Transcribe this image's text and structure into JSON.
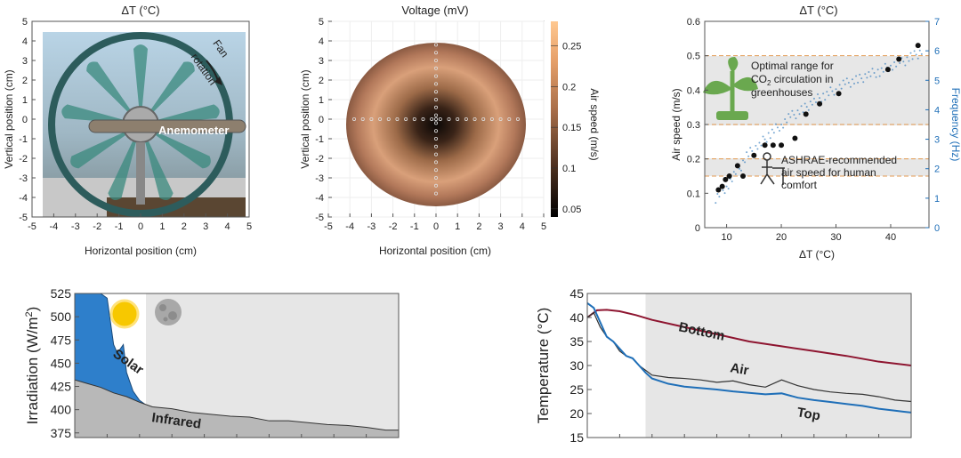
{
  "chart_data": [
    {
      "type": "photo-plot",
      "title": "ΔT (°C)",
      "xlabel": "Horizontal position (cm)",
      "ylabel": "Vertical position (cm)",
      "xlim": [
        -5,
        5
      ],
      "ylim": [
        -5,
        5
      ],
      "xticks": [
        -5,
        -4,
        -3,
        -2,
        -1,
        0,
        1,
        2,
        3,
        4,
        5
      ],
      "yticks": [
        -5,
        -4,
        -3,
        -2,
        -1,
        0,
        1,
        2,
        3,
        4,
        5
      ],
      "annotations": {
        "fan": "Fan",
        "rotation": "rotation",
        "anemometer": "Anemometer"
      }
    },
    {
      "type": "heatmap",
      "title": "Voltage (mV)",
      "xlabel": "Horizontal position (cm)",
      "ylabel": "Vertical position (cm)",
      "colorbar_label": "Air speed (m/s)",
      "colorbar_ticks": [
        "0.05",
        "0.1",
        "0.15",
        "0.2",
        "0.25"
      ],
      "colorbar_range": [
        0.04,
        0.28
      ],
      "xlim": [
        -5,
        5
      ],
      "ylim": [
        -5,
        5
      ],
      "xticks": [
        -5,
        -4,
        -3,
        -2,
        -1,
        0,
        1,
        2,
        3,
        4,
        5
      ],
      "yticks": [
        -5,
        -4,
        -3,
        -2,
        -1,
        0,
        1,
        2,
        3,
        4,
        5
      ],
      "disk_radius_cm": 4.2,
      "sample_points": {
        "horizontal": [
          -3.8,
          -3.4,
          -3,
          -2.6,
          -2.2,
          -1.8,
          -1.4,
          -1,
          -0.6,
          -0.2,
          0,
          0.2,
          0.6,
          1,
          1.4,
          1.8,
          2.2,
          2.6,
          3,
          3.4,
          3.8
        ],
        "vertical": [
          -3.8,
          -3.4,
          -3,
          -2.6,
          -2.2,
          -1.8,
          -1.4,
          -1,
          -0.6,
          -0.2,
          0.2,
          0.6,
          1,
          1.4,
          1.8,
          2.2,
          2.6,
          3,
          3.4,
          3.8
        ]
      }
    },
    {
      "type": "scatter",
      "title": "ΔT (°C)",
      "xlabel": "ΔT (°C)",
      "ylabel": "Air speed (m/s)",
      "ylabel_right": "Frequency (Hz)",
      "xlim": [
        6,
        47
      ],
      "ylim": [
        0,
        0.6
      ],
      "ylim_right": [
        0,
        7
      ],
      "xticks": [
        10,
        20,
        30,
        40
      ],
      "yticks": [
        0,
        0.1,
        0.2,
        0.3,
        0.4,
        0.5,
        0.6
      ],
      "yticks_right": [
        0,
        1,
        2,
        3,
        4,
        5,
        6,
        7
      ],
      "bands": [
        {
          "name": "CO2 range",
          "y0": 0.3,
          "y1": 0.5,
          "label_lines": [
            "Optimal range for",
            "CO",
            "2",
            " circulation in",
            "greenhouses"
          ]
        },
        {
          "name": "ASHRAE range",
          "y0": 0.15,
          "y1": 0.2,
          "label_lines": [
            "ASHRAE-recommended",
            "air speed for human",
            "comfort"
          ]
        }
      ],
      "series": [
        {
          "name": "Air speed",
          "x": [
            8.5,
            9.2,
            9.8,
            10.5,
            12,
            13,
            15,
            17,
            18.5,
            20,
            22.5,
            24.5,
            27,
            30.5,
            39.5,
            41.5,
            45
          ],
          "y": [
            0.11,
            0.12,
            0.14,
            0.15,
            0.18,
            0.15,
            0.21,
            0.24,
            0.24,
            0.24,
            0.26,
            0.33,
            0.36,
            0.39,
            0.46,
            0.49,
            0.53
          ]
        },
        {
          "name": "Frequency",
          "x": [
            8,
            10,
            12,
            14,
            16,
            18,
            20,
            22,
            24,
            26,
            28,
            30,
            32,
            34,
            36,
            38,
            40,
            42,
            44,
            46
          ],
          "y": [
            1.0,
            1.4,
            1.9,
            2.5,
            2.8,
            3.2,
            3.5,
            3.8,
            4.0,
            4.3,
            4.5,
            4.7,
            4.9,
            5.0,
            5.2,
            5.3,
            5.5,
            5.6,
            5.8,
            6.0
          ]
        }
      ]
    },
    {
      "type": "area",
      "ylabel": "Irradiation (W/m",
      "ylabel_sup": "2",
      "ylabel_end": ")",
      "xlim": [
        0,
        100
      ],
      "ylim": [
        370,
        525
      ],
      "yticks": [
        "375",
        "400",
        "425",
        "450",
        "475",
        "500",
        "525"
      ],
      "day_night_split": 22,
      "series": [
        {
          "name": "Solar",
          "x": [
            0,
            4,
            8,
            10,
            12,
            13,
            14,
            15,
            16,
            18,
            20,
            22,
            24
          ],
          "y": [
            525,
            525,
            525,
            520,
            470,
            462,
            465,
            470,
            440,
            420,
            410,
            405,
            402
          ]
        },
        {
          "name": "Infrared",
          "x": [
            0,
            4,
            8,
            12,
            16,
            20,
            24,
            30,
            36,
            42,
            48,
            54,
            60,
            66,
            72,
            78,
            84,
            90,
            96,
            100
          ],
          "y": [
            432,
            428,
            424,
            418,
            414,
            408,
            403,
            401,
            397,
            395,
            393,
            392,
            388,
            388,
            386,
            384,
            383,
            381,
            378,
            378
          ]
        }
      ],
      "annotations": {
        "solar": "Solar",
        "infrared": "Infrared"
      }
    },
    {
      "type": "line",
      "ylabel": "Temperature (°C)",
      "xlim": [
        0,
        100
      ],
      "ylim": [
        15,
        45
      ],
      "yticks": [
        "15",
        "20",
        "25",
        "30",
        "35",
        "40",
        "45"
      ],
      "shade_start": 18,
      "series": [
        {
          "name": "Bottom",
          "x": [
            0,
            3,
            6,
            10,
            15,
            20,
            30,
            40,
            50,
            60,
            70,
            80,
            90,
            100
          ],
          "y": [
            40,
            41.5,
            41.6,
            41.3,
            40.5,
            39.5,
            38.0,
            36.5,
            35.0,
            34.0,
            33.0,
            32.0,
            30.8,
            30.0
          ]
        },
        {
          "name": "Air",
          "x": [
            0,
            2,
            4,
            6,
            8,
            10,
            12,
            14,
            16,
            18,
            20,
            25,
            30,
            35,
            40,
            45,
            50,
            55,
            60,
            65,
            70,
            75,
            80,
            85,
            90,
            95,
            100
          ],
          "y": [
            40,
            41,
            38,
            36,
            35,
            33,
            32,
            31.5,
            30,
            29,
            28,
            27.5,
            27.3,
            27,
            26.5,
            26.8,
            26,
            25.5,
            27,
            25.8,
            25,
            24.5,
            24.2,
            24,
            23.5,
            22.8,
            22.5
          ]
        },
        {
          "name": "Top",
          "x": [
            0,
            2,
            4,
            6,
            8,
            10,
            12,
            14,
            16,
            18,
            20,
            25,
            30,
            35,
            40,
            45,
            50,
            55,
            60,
            65,
            70,
            75,
            80,
            85,
            90,
            95,
            100
          ],
          "y": [
            43,
            42,
            39,
            36,
            35,
            33.5,
            32,
            31.5,
            30,
            28.5,
            27.3,
            26.2,
            25.6,
            25.3,
            25,
            24.6,
            24.3,
            24,
            24.2,
            23.3,
            22.8,
            22.4,
            22,
            21.6,
            21,
            20.6,
            20.2
          ]
        }
      ],
      "annotations": {
        "bottom": "Bottom",
        "air": "Air",
        "top": "Top"
      }
    }
  ],
  "colors": {
    "solar_fill": "#2e7fcb",
    "infrared_fill": "#b8b8b8",
    "night_bg": "#e6e6e6",
    "bottom_line": "#8e1530",
    "air_line": "#333333",
    "top_line": "#1f6fb8",
    "freq_axis": "#1f6fb8",
    "band_line": "#e39a52"
  }
}
